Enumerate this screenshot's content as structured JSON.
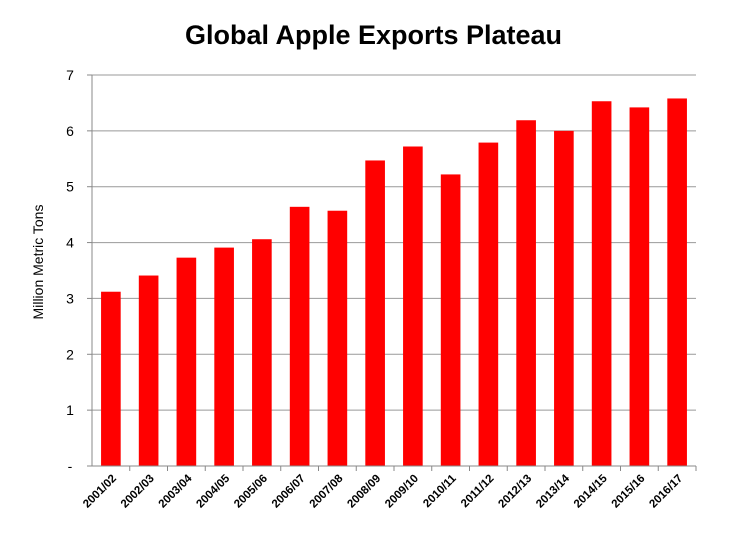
{
  "chart_data": {
    "type": "bar",
    "title": "Global Apple Exports Plateau",
    "xlabel": "",
    "ylabel": "Million Metric Tons",
    "ylim": [
      0,
      7
    ],
    "y_ticks": [
      "-",
      "1",
      "2",
      "3",
      "4",
      "5",
      "6",
      "7"
    ],
    "grid": true,
    "legend": "none",
    "bar_color": "#ff0000",
    "grid_color": "#999999",
    "categories": [
      "2001/02",
      "2002/03",
      "2003/04",
      "2004/05",
      "2005/06",
      "2006/07",
      "2007/08",
      "2008/09",
      "2009/10",
      "2010/11",
      "2011/12",
      "2012/13",
      "2013/14",
      "2014/15",
      "2015/16",
      "2016/17"
    ],
    "values": [
      3.12,
      3.41,
      3.73,
      3.91,
      4.06,
      4.64,
      4.57,
      5.47,
      5.72,
      5.22,
      5.79,
      6.19,
      6.0,
      6.53,
      6.42,
      6.58
    ]
  }
}
